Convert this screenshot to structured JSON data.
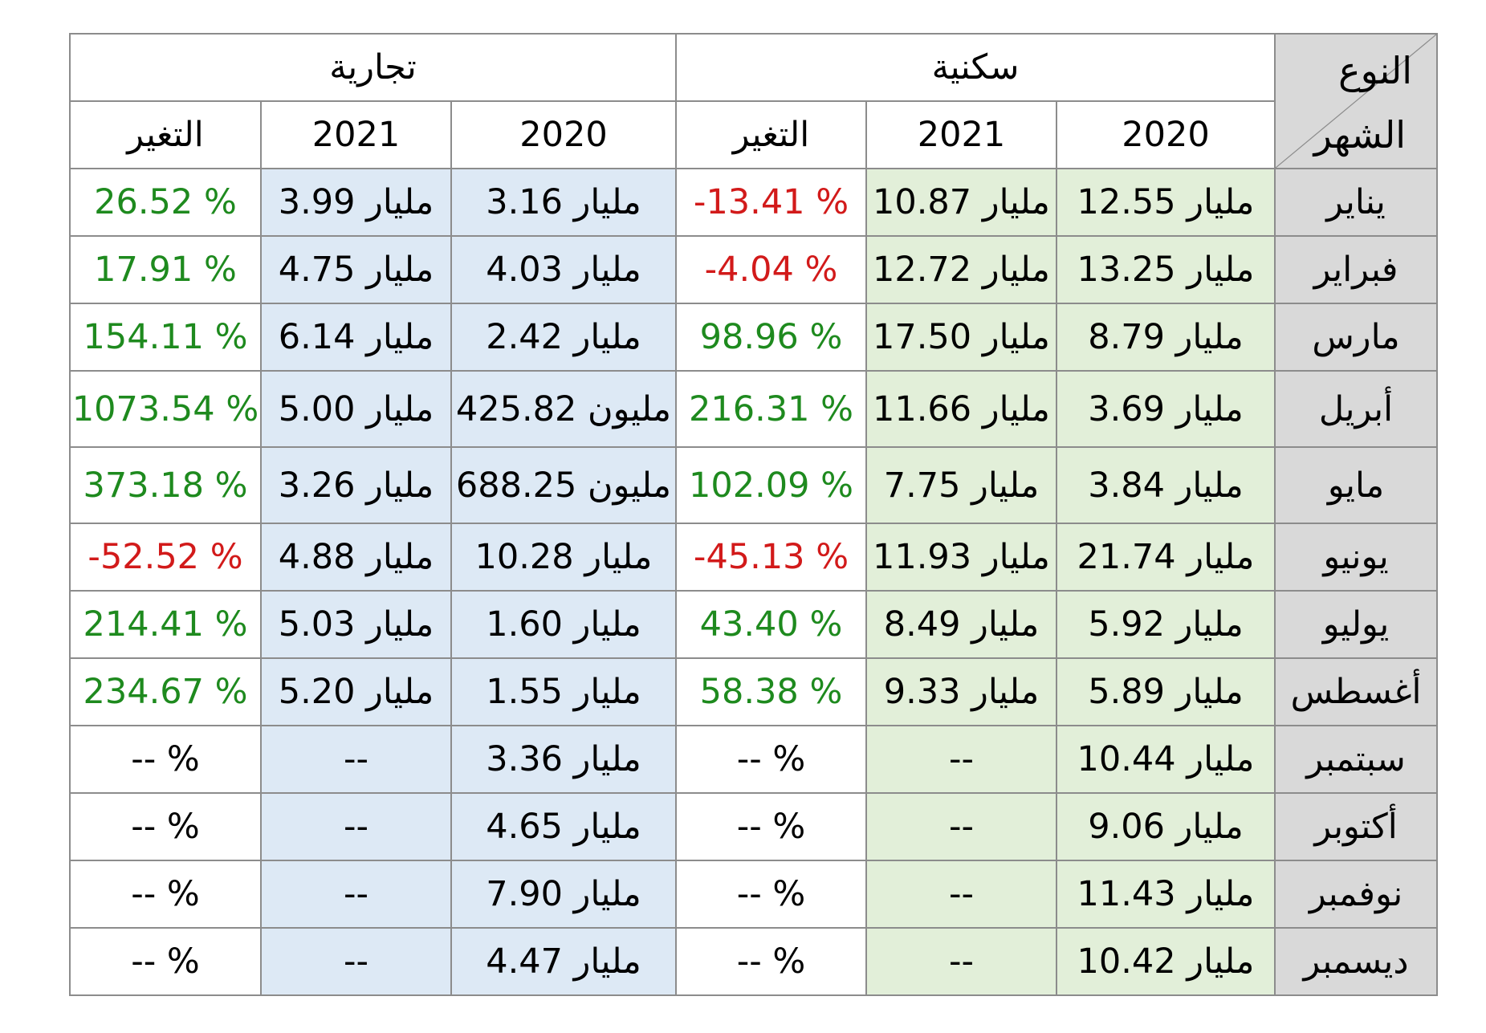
{
  "corner": {
    "type_label": "النوع",
    "month_label": "الشهر"
  },
  "groups": {
    "commercial": "تجارية",
    "residential": "سكنية"
  },
  "columns": {
    "com_change": "التغير",
    "com_2021": "2021",
    "com_2020": "2020",
    "res_change": "التغير",
    "res_2021": "2021",
    "res_2020": "2020"
  },
  "colors": {
    "positive": "#1e8a1e",
    "negative": "#d21a1a",
    "residential_fill": "#e2efd9",
    "commercial_fill": "#dde9f5",
    "header_fill": "#d9d9d9"
  },
  "rows": [
    {
      "month": "يناير",
      "res_2020": "12.55 مليار",
      "res_2021": "10.87 مليار",
      "res_change": "-13.41 %",
      "res_sign": "neg",
      "com_2020": "3.16 مليار",
      "com_2021": "3.99 مليار",
      "com_change": "26.52 %",
      "com_sign": "pos"
    },
    {
      "month": "فبراير",
      "res_2020": "13.25 مليار",
      "res_2021": "12.72 مليار",
      "res_change": "-4.04 %",
      "res_sign": "neg",
      "com_2020": "4.03 مليار",
      "com_2021": "4.75 مليار",
      "com_change": "17.91 %",
      "com_sign": "pos"
    },
    {
      "month": "مارس",
      "res_2020": "8.79 مليار",
      "res_2021": "17.50 مليار",
      "res_change": "98.96 %",
      "res_sign": "pos",
      "com_2020": "2.42 مليار",
      "com_2021": "6.14 مليار",
      "com_change": "154.11 %",
      "com_sign": "pos"
    },
    {
      "month": "أبريل",
      "res_2020": "3.69 مليار",
      "res_2021": "11.66 مليار",
      "res_change": "216.31 %",
      "res_sign": "pos",
      "com_2020": "425.82 مليون",
      "com_2021": "5.00 مليار",
      "com_change": "1073.54 %",
      "com_sign": "pos"
    },
    {
      "month": "مايو",
      "res_2020": "3.84 مليار",
      "res_2021": "7.75 مليار",
      "res_change": "102.09 %",
      "res_sign": "pos",
      "com_2020": "688.25 مليون",
      "com_2021": "3.26 مليار",
      "com_change": "373.18 %",
      "com_sign": "pos"
    },
    {
      "month": "يونيو",
      "res_2020": "21.74 مليار",
      "res_2021": "11.93 مليار",
      "res_change": "-45.13 %",
      "res_sign": "neg",
      "com_2020": "10.28 مليار",
      "com_2021": "4.88 مليار",
      "com_change": "-52.52 %",
      "com_sign": "neg"
    },
    {
      "month": "يوليو",
      "res_2020": "5.92 مليار",
      "res_2021": "8.49 مليار",
      "res_change": "43.40 %",
      "res_sign": "pos",
      "com_2020": "1.60 مليار",
      "com_2021": "5.03 مليار",
      "com_change": "214.41 %",
      "com_sign": "pos"
    },
    {
      "month": "أغسطس",
      "res_2020": "5.89 مليار",
      "res_2021": "9.33 مليار",
      "res_change": "58.38 %",
      "res_sign": "pos",
      "com_2020": "1.55 مليار",
      "com_2021": "5.20 مليار",
      "com_change": "234.67 %",
      "com_sign": "pos"
    },
    {
      "month": "سبتمبر",
      "res_2020": "10.44 مليار",
      "res_2021": "--",
      "res_change": "-- %",
      "res_sign": "neu",
      "com_2020": "3.36 مليار",
      "com_2021": "--",
      "com_change": "-- %",
      "com_sign": "neu"
    },
    {
      "month": "أكتوبر",
      "res_2020": "9.06 مليار",
      "res_2021": "--",
      "res_change": "-- %",
      "res_sign": "neu",
      "com_2020": "4.65 مليار",
      "com_2021": "--",
      "com_change": "-- %",
      "com_sign": "neu"
    },
    {
      "month": "نوفمبر",
      "res_2020": "11.43 مليار",
      "res_2021": "--",
      "res_change": "-- %",
      "res_sign": "neu",
      "com_2020": "7.90 مليار",
      "com_2021": "--",
      "com_change": "-- %",
      "com_sign": "neu"
    },
    {
      "month": "ديسمبر",
      "res_2020": "10.42 مليار",
      "res_2021": "--",
      "res_change": "-- %",
      "res_sign": "neu",
      "com_2020": "4.47 مليار",
      "com_2021": "--",
      "com_change": "-- %",
      "com_sign": "neu"
    }
  ]
}
